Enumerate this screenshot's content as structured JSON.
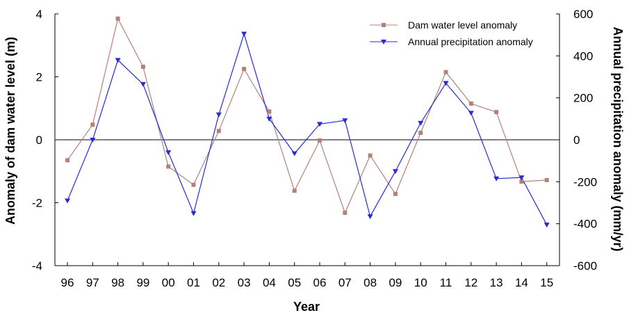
{
  "colors": {
    "dam": "#b5807a",
    "precip": "#2a2ad4",
    "axis": "#000000",
    "zero_line": "#000000"
  },
  "chart_data": {
    "type": "line",
    "xlabel": "Year",
    "ylabel_left": "Anomaly of dam water level (m)",
    "ylabel_right": "Annual precipitation anomaly (mm/yr)",
    "categories": [
      "96",
      "97",
      "98",
      "99",
      "00",
      "01",
      "02",
      "03",
      "04",
      "05",
      "06",
      "07",
      "08",
      "09",
      "10",
      "11",
      "12",
      "13",
      "14",
      "15"
    ],
    "y_left": {
      "lim": [
        -4,
        4
      ],
      "ticks": [
        -4,
        -2,
        0,
        2,
        4
      ]
    },
    "y_right": {
      "lim": [
        -600,
        600
      ],
      "ticks": [
        -600,
        -400,
        -200,
        0,
        200,
        400,
        600
      ]
    },
    "zero_line": true,
    "grid": false,
    "legend_position": "top-right",
    "series": [
      {
        "name": "Dam water level anomaly",
        "axis": "left",
        "marker": "square",
        "color": "#b5807a",
        "values": [
          -0.65,
          0.48,
          3.85,
          2.32,
          -0.85,
          -1.43,
          0.28,
          2.25,
          0.9,
          -1.62,
          -0.02,
          -2.32,
          -0.5,
          -1.72,
          0.22,
          2.15,
          1.15,
          0.88,
          -1.33,
          -1.28
        ]
      },
      {
        "name": "Annual precipitation anomaly",
        "axis": "right",
        "marker": "triangle-down",
        "color": "#2a2ad4",
        "values": [
          -290,
          0,
          380,
          265,
          -60,
          -350,
          120,
          505,
          100,
          -65,
          75,
          92,
          -365,
          -150,
          80,
          270,
          128,
          -185,
          -180,
          -405
        ]
      }
    ]
  }
}
